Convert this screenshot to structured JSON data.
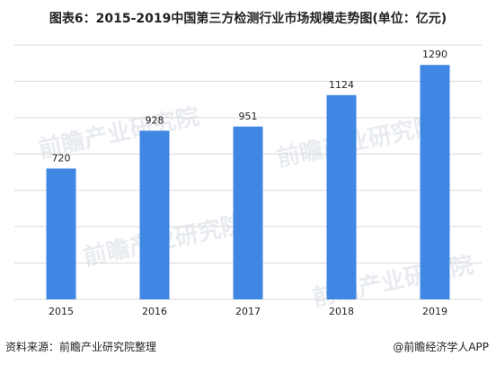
{
  "colors": {
    "bar": "#3F87E3",
    "gridline": "#D9D9D9",
    "text": "#222222",
    "watermark": "#D6DCE4"
  },
  "watermark": "前瞻产业研究院",
  "chart_data": {
    "type": "bar",
    "title": "图表6：2015-2019中国第三方检测行业市场规模走势图(单位：亿元)",
    "categories": [
      "2015",
      "2016",
      "2017",
      "2018",
      "2019"
    ],
    "values": [
      720,
      928,
      951,
      1124,
      1290
    ],
    "data_labels": [
      "720",
      "928",
      "951",
      "1124",
      "1290"
    ],
    "ylim": [
      0,
      1400
    ],
    "grid": true,
    "legend": "none"
  },
  "footer": {
    "source": "资料来源：前瞻产业研究院整理",
    "brand": "@前瞻经济学人APP"
  }
}
